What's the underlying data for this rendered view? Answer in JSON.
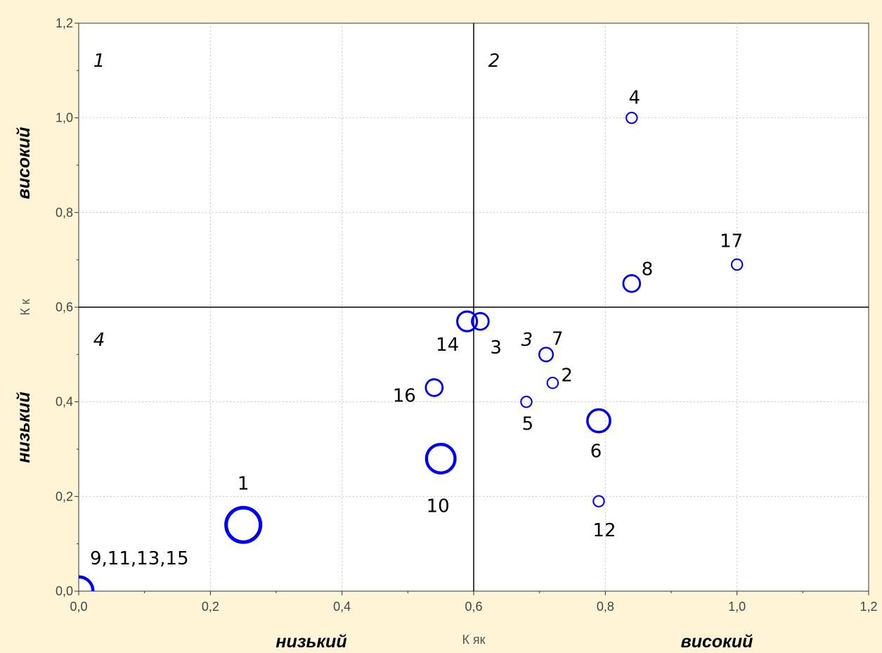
{
  "chart_data": {
    "type": "scatter",
    "xlabel": "К як",
    "ylabel": "К к",
    "xlim": [
      0,
      1.2
    ],
    "ylim": [
      0,
      1.2
    ],
    "grid": true,
    "x_ticks": [
      "0,0",
      "0,2",
      "0,4",
      "0,6",
      "0,8",
      "1,0",
      "1,2"
    ],
    "y_ticks": [
      "0,0",
      "0,2",
      "0,4",
      "0,6",
      "0,8",
      "1,0",
      "1,2"
    ],
    "divider": {
      "x": 0.6,
      "y": 0.6
    },
    "x_side_labels": {
      "low": "низький",
      "high": "високий"
    },
    "y_side_labels": {
      "low": "низький",
      "high": "високий"
    },
    "quadrants": [
      {
        "label": "1",
        "x": 0.02,
        "y": 1.12
      },
      {
        "label": "2",
        "x": 0.62,
        "y": 1.12
      },
      {
        "label": "3",
        "x": 0.67,
        "y": 0.53
      },
      {
        "label": "4",
        "x": 0.02,
        "y": 0.53
      }
    ],
    "points": [
      {
        "label": "1",
        "x": 0.25,
        "y": 0.14,
        "size": 5
      },
      {
        "label": "2",
        "x": 0.72,
        "y": 0.44,
        "size": 1
      },
      {
        "label": "3",
        "x": 0.61,
        "y": 0.57,
        "size": 2
      },
      {
        "label": "4",
        "x": 0.84,
        "y": 1.0,
        "size": 1
      },
      {
        "label": "5",
        "x": 0.68,
        "y": 0.4,
        "size": 1
      },
      {
        "label": "6",
        "x": 0.79,
        "y": 0.36,
        "size": 3
      },
      {
        "label": "7",
        "x": 0.71,
        "y": 0.5,
        "size": 1.5
      },
      {
        "label": "8",
        "x": 0.84,
        "y": 0.65,
        "size": 2
      },
      {
        "label": "9,11,13,15",
        "x": 0.0,
        "y": 0.0,
        "size": 4
      },
      {
        "label": "10",
        "x": 0.55,
        "y": 0.28,
        "size": 4
      },
      {
        "label": "12",
        "x": 0.79,
        "y": 0.19,
        "size": 1
      },
      {
        "label": "14",
        "x": 0.59,
        "y": 0.57,
        "size": 2.5
      },
      {
        "label": "16",
        "x": 0.54,
        "y": 0.43,
        "size": 2
      },
      {
        "label": "17",
        "x": 1.0,
        "y": 0.69,
        "size": 1
      }
    ],
    "colors": {
      "background": "#fff5d6",
      "plot_background": "#ffffff",
      "marker": "#0000ee",
      "grid": "#c8c8c8",
      "divider": "#000000"
    }
  }
}
